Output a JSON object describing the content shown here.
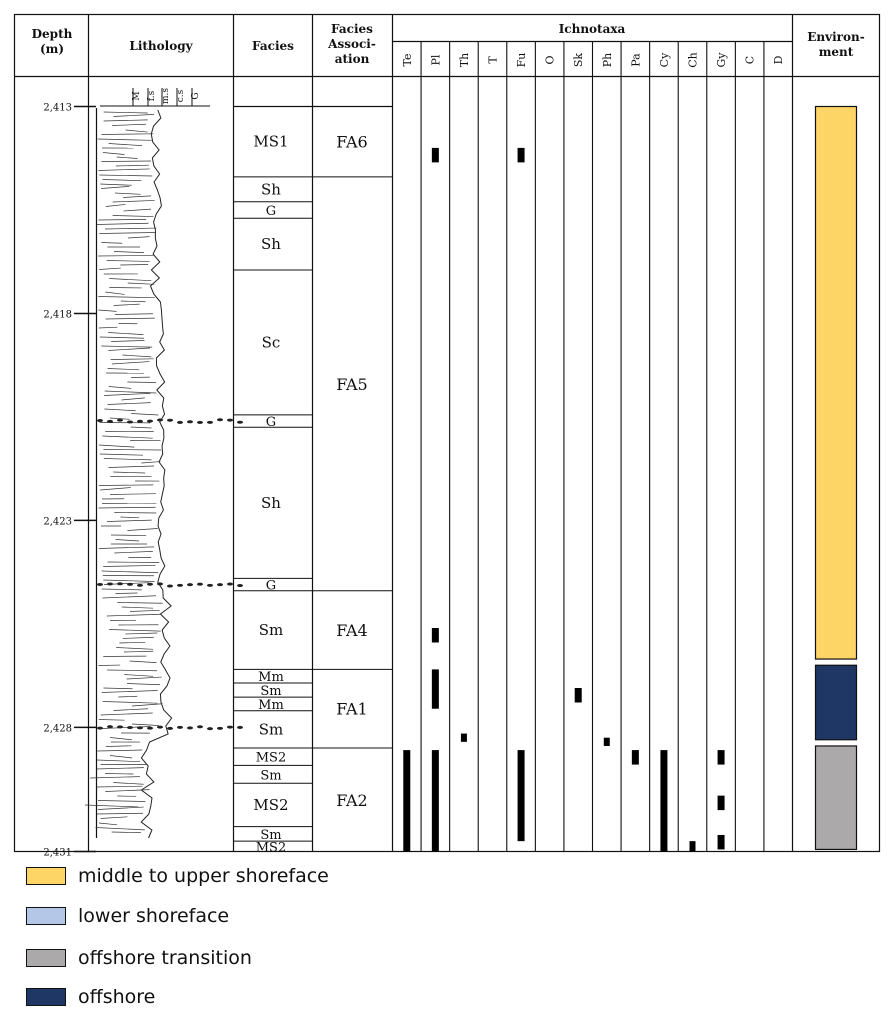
{
  "header": {
    "depth": [
      "Depth",
      "(m)"
    ],
    "lithology": "Lithology",
    "facies": "Facies",
    "facies_association": [
      "Facies",
      "Associ-",
      "ation"
    ],
    "ichnotaxa": "Ichnotaxa",
    "environment": [
      "Environ-",
      "ment"
    ]
  },
  "grain_scale": [
    "M",
    "f.s",
    "m.s",
    "c.s",
    "G"
  ],
  "ichnotaxa_columns": [
    "Te",
    "Pl",
    "Th",
    "T",
    "Fu",
    "O",
    "Sk",
    "Ph",
    "Pa",
    "Cy",
    "Ch",
    "Gy",
    "C",
    "D"
  ],
  "depth_range": [
    2413,
    2431
  ],
  "depth_ticks": [
    {
      "label": "2,413",
      "value": 2413
    },
    {
      "label": "2,418",
      "value": 2418
    },
    {
      "label": "2,423",
      "value": 2423
    },
    {
      "label": "2,428",
      "value": 2428
    },
    {
      "label": "2,431",
      "value": 2431
    }
  ],
  "facies": [
    {
      "label": "MS1",
      "top": 2413.0,
      "bottom": 2414.7
    },
    {
      "label": "Sh",
      "top": 2414.7,
      "bottom": 2415.3
    },
    {
      "label": "G",
      "top": 2415.3,
      "bottom": 2415.7
    },
    {
      "label": "Sh",
      "top": 2415.7,
      "bottom": 2416.95
    },
    {
      "label": "Sc",
      "top": 2416.95,
      "bottom": 2420.45
    },
    {
      "label": "G",
      "top": 2420.45,
      "bottom": 2420.75
    },
    {
      "label": "Sh",
      "top": 2420.75,
      "bottom": 2424.4
    },
    {
      "label": "G",
      "top": 2424.4,
      "bottom": 2424.7
    },
    {
      "label": "Sm",
      "top": 2424.7,
      "bottom": 2426.6
    },
    {
      "label": "Mm",
      "top": 2426.6,
      "bottom": 2426.93
    },
    {
      "label": "Sm",
      "top": 2426.93,
      "bottom": 2427.27
    },
    {
      "label": "Mm",
      "top": 2427.27,
      "bottom": 2427.6
    },
    {
      "label": "Sm",
      "top": 2427.6,
      "bottom": 2428.5
    },
    {
      "label": "MS2",
      "top": 2428.5,
      "bottom": 2428.92
    },
    {
      "label": "Sm",
      "top": 2428.92,
      "bottom": 2429.35
    },
    {
      "label": "MS2",
      "top": 2429.35,
      "bottom": 2430.4
    },
    {
      "label": "Sm",
      "top": 2430.4,
      "bottom": 2430.75
    },
    {
      "label": "MS2",
      "top": 2430.75,
      "bottom": 2431.0
    }
  ],
  "facies_associations": [
    {
      "label": "FA6",
      "top": 2413.0,
      "bottom": 2414.7
    },
    {
      "label": "FA5",
      "top": 2414.7,
      "bottom": 2424.7
    },
    {
      "label": "FA4",
      "top": 2424.7,
      "bottom": 2426.6
    },
    {
      "label": "FA1",
      "top": 2426.6,
      "bottom": 2428.5
    },
    {
      "label": "FA2",
      "top": 2428.5,
      "bottom": 2431.0
    }
  ],
  "trace_occurrences": [
    {
      "taxon": "Pl",
      "top": 2414.0,
      "bottom": 2414.35
    },
    {
      "taxon": "Fu",
      "top": 2414.0,
      "bottom": 2414.35
    },
    {
      "taxon": "Pl",
      "top": 2425.6,
      "bottom": 2425.95
    },
    {
      "taxon": "Pl",
      "top": 2426.6,
      "bottom": 2427.55
    },
    {
      "taxon": "Sk",
      "top": 2427.05,
      "bottom": 2427.4
    },
    {
      "taxon": "Th",
      "top": 2428.15,
      "bottom": 2428.35
    },
    {
      "taxon": "Ph",
      "top": 2428.25,
      "bottom": 2428.45
    },
    {
      "taxon": "Te",
      "top": 2428.55,
      "bottom": 2431.0
    },
    {
      "taxon": "Pl",
      "top": 2428.55,
      "bottom": 2431.0
    },
    {
      "taxon": "Fu",
      "top": 2428.55,
      "bottom": 2430.75
    },
    {
      "taxon": "Pa",
      "top": 2428.55,
      "bottom": 2428.9
    },
    {
      "taxon": "Cy",
      "top": 2428.55,
      "bottom": 2431.0
    },
    {
      "taxon": "Gy",
      "top": 2428.55,
      "bottom": 2428.9
    },
    {
      "taxon": "Gy",
      "top": 2429.65,
      "bottom": 2430.0
    },
    {
      "taxon": "Gy",
      "top": 2430.6,
      "bottom": 2430.95
    },
    {
      "taxon": "Ch",
      "top": 2430.75,
      "bottom": 2431.0
    }
  ],
  "environment_bars": [
    {
      "env": "middle to upper shoreface",
      "top": 2413.0,
      "bottom": 2426.35
    },
    {
      "env": "offshore",
      "top": 2426.5,
      "bottom": 2428.3
    },
    {
      "env": "offshore transition",
      "top": 2428.45,
      "bottom": 2430.95
    }
  ],
  "legend": [
    {
      "label": "middle to upper shoreface",
      "color": "#FDD466"
    },
    {
      "label": "lower shoreface",
      "color": "#B4C7E7"
    },
    {
      "label": "offshore transition",
      "color": "#ABA9A9"
    },
    {
      "label": "offshore",
      "color": "#1E3764"
    }
  ],
  "colors": {
    "trace": "#000000",
    "lithology_line": "#333333"
  }
}
